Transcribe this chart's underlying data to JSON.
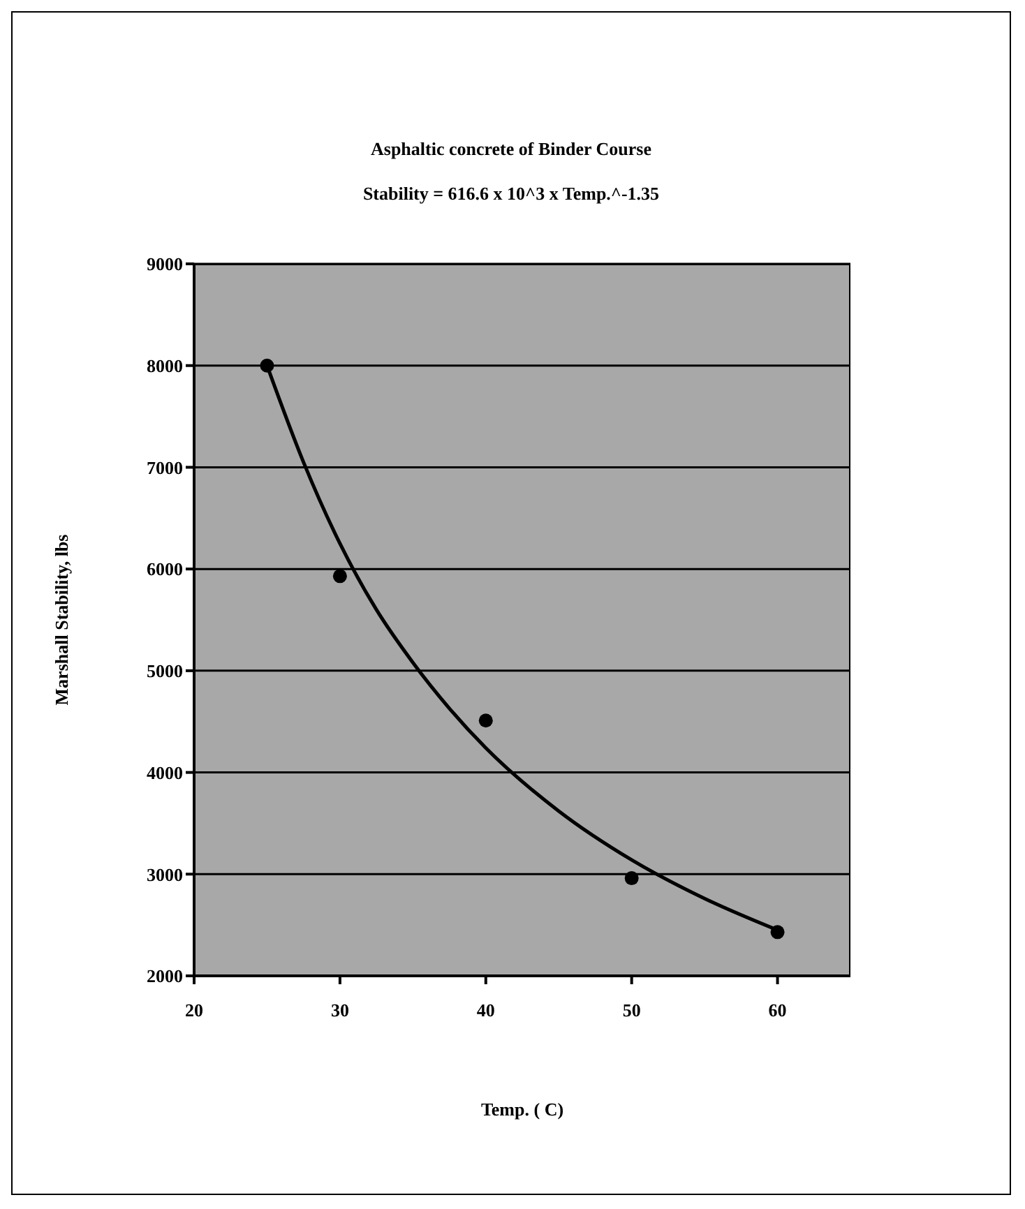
{
  "chart_data": {
    "type": "scatter",
    "title": "Asphaltic concrete of Binder Course",
    "subtitle": "Stability = 616.6 x 10^3 x Temp.^-1.35",
    "xlabel": "Temp. ( C)",
    "ylabel": "Marshall Stability, lbs",
    "xlim": [
      20,
      65
    ],
    "xticks": [
      20,
      30,
      40,
      50,
      60
    ],
    "ylim": [
      2000,
      9000
    ],
    "yticks": [
      2000,
      3000,
      4000,
      5000,
      6000,
      7000,
      8000,
      9000
    ],
    "grid": "y",
    "marker": "circle",
    "series": [
      {
        "color": "#000000",
        "x": [
          25,
          30,
          40,
          50,
          60
        ],
        "values": [
          8000,
          5930,
          4510,
          2960,
          2430
        ]
      },
      {
        "type": "line",
        "marker": "none",
        "color": "#000000",
        "x": [
          25,
          27.5,
          30,
          32.5,
          35,
          37.5,
          40,
          45,
          50,
          55,
          60
        ],
        "values": [
          8000,
          7050,
          6250,
          5600,
          5080,
          4630,
          4240,
          3620,
          3140,
          2760,
          2450
        ]
      }
    ]
  }
}
